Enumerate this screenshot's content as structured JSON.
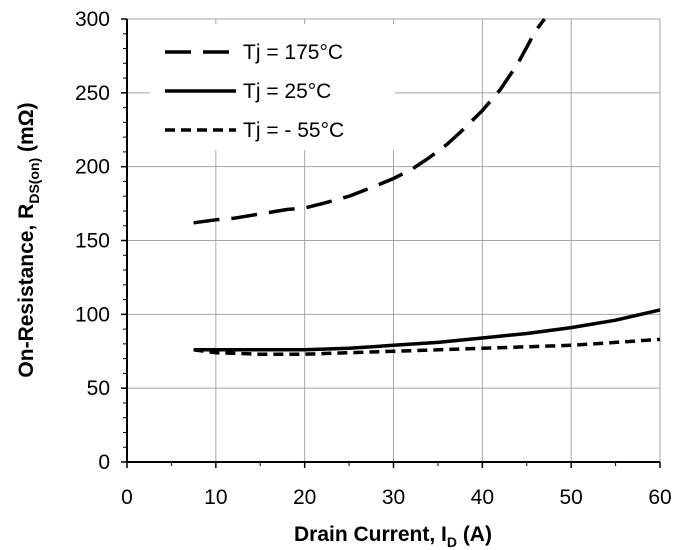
{
  "chart_data": {
    "type": "line",
    "xlabel": {
      "main": "Drain Current, I",
      "sub": "D",
      "tail": " (A)"
    },
    "ylabel": {
      "main": "On-Resistance, R",
      "sub": "DS(on)",
      "tail": " (mΩ)"
    },
    "xlim": [
      0,
      60
    ],
    "ylim": [
      0,
      300
    ],
    "xticks": [
      0,
      10,
      20,
      30,
      40,
      50,
      60
    ],
    "yticks": [
      0,
      50,
      100,
      150,
      200,
      250,
      300
    ],
    "grid": true,
    "legend_position": "top-left",
    "series": [
      {
        "name": "Tj = 175°C",
        "style": "long-dash",
        "color": "#000000",
        "x": [
          7.5,
          10,
          12,
          15,
          18,
          20,
          22,
          25,
          28,
          30,
          32,
          34,
          36,
          38,
          40,
          42,
          44,
          45,
          46,
          47
        ],
        "y": [
          162,
          164,
          165,
          168,
          171,
          172,
          175,
          180,
          187,
          192,
          198,
          206,
          215,
          226,
          238,
          252,
          270,
          281,
          292,
          300
        ]
      },
      {
        "name": "Tj = 25°C",
        "style": "solid",
        "color": "#000000",
        "x": [
          7.5,
          10,
          15,
          20,
          25,
          30,
          35,
          40,
          45,
          50,
          55,
          60
        ],
        "y": [
          76,
          76,
          76,
          76,
          77,
          79,
          81,
          84,
          87,
          91,
          96,
          103
        ]
      },
      {
        "name": "Tj = - 55°C",
        "style": "short-dash",
        "color": "#000000",
        "x": [
          7.5,
          10,
          15,
          20,
          25,
          30,
          35,
          40,
          45,
          50,
          55,
          60
        ],
        "y": [
          76,
          74,
          73,
          73,
          74,
          75,
          76,
          77,
          78,
          79,
          81,
          83
        ]
      }
    ]
  }
}
